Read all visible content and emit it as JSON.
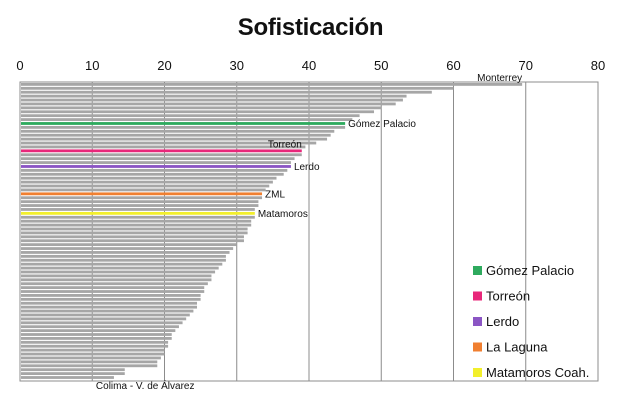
{
  "chart_data": {
    "type": "bar",
    "orientation": "horizontal",
    "title": "Sofisticación",
    "xlim": [
      0,
      80
    ],
    "x_ticks": [
      "0",
      "10",
      "20",
      "30",
      "40",
      "50",
      "60",
      "70",
      "80"
    ],
    "grid": true,
    "default_color": "#a6a6a6",
    "values": [
      69.5,
      60.0,
      57.0,
      53.5,
      53.0,
      52.0,
      50.0,
      49.0,
      47.0,
      46.0,
      45.0,
      45.0,
      43.5,
      43.0,
      42.5,
      41.0,
      39.5,
      39.0,
      39.0,
      38.0,
      37.5,
      37.5,
      37.0,
      36.5,
      35.5,
      35.0,
      34.5,
      34.0,
      33.5,
      33.5,
      33.0,
      33.0,
      32.5,
      32.5,
      32.5,
      32.0,
      32.0,
      31.5,
      31.5,
      31.0,
      31.0,
      30.0,
      29.5,
      29.0,
      28.5,
      28.5,
      28.0,
      27.5,
      27.0,
      26.5,
      26.5,
      26.0,
      25.5,
      25.5,
      25.0,
      25.0,
      24.5,
      24.5,
      24.0,
      23.5,
      23.0,
      22.5,
      22.0,
      21.5,
      21.0,
      21.0,
      20.5,
      20.5,
      20.0,
      20.0,
      19.5,
      19.0,
      19.0,
      14.5,
      14.5,
      13.0
    ],
    "highlights": [
      {
        "index": 10,
        "color": "#2eaa5e"
      },
      {
        "index": 17,
        "color": "#e8277a"
      },
      {
        "index": 21,
        "color": "#8b55c4"
      },
      {
        "index": 28,
        "color": "#f07f30"
      },
      {
        "index": 33,
        "color": "#f2ef2c"
      }
    ],
    "bar_labels": [
      {
        "index": 0,
        "text": "Monterrey",
        "position": "above"
      },
      {
        "index": 10,
        "text": "Gómez Palacio",
        "position": "right"
      },
      {
        "index": 17,
        "text": "Torreón",
        "position": "above"
      },
      {
        "index": 21,
        "text": "Lerdo",
        "position": "right"
      },
      {
        "index": 28,
        "text": "ZML",
        "position": "right"
      },
      {
        "index": 33,
        "text": "Matamoros",
        "position": "right"
      },
      {
        "index": 75,
        "text": "Colima - V. de Álvarez",
        "position": "below"
      }
    ],
    "legend": {
      "placement": "bottom-right",
      "entries": [
        {
          "label": "Gómez Palacio",
          "color": "#2eaa5e"
        },
        {
          "label": "Torreón",
          "color": "#e8277a"
        },
        {
          "label": "Lerdo",
          "color": "#8b55c4"
        },
        {
          "label": "La Laguna",
          "color": "#f07f30"
        },
        {
          "label": "Matamoros Coah.",
          "color": "#f2ef2c"
        }
      ]
    }
  }
}
